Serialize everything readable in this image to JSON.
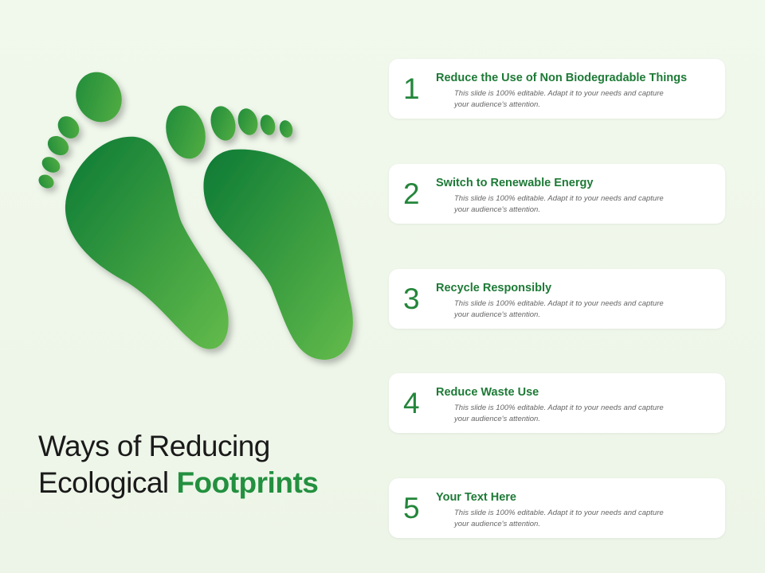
{
  "title": {
    "line1": "Ways of Reducing",
    "line2_plain": "Ecological ",
    "line2_accent": "Footprints"
  },
  "items": [
    {
      "number": "1",
      "heading": "Reduce the Use of Non Biodegradable Things",
      "desc_line1": "This slide is 100% editable.  Adapt it to your needs  and  capture",
      "desc_line2": "your audience's  attention."
    },
    {
      "number": "2",
      "heading": "Switch to Renewable Energy",
      "desc_line1": "This slide is 100% editable.  Adapt it to your needs  and  capture",
      "desc_line2": "your audience's  attention."
    },
    {
      "number": "3",
      "heading": "Recycle Responsibly",
      "desc_line1": "This slide is 100% editable.  Adapt it to your needs  and  capture",
      "desc_line2": "your audience's  attention."
    },
    {
      "number": "4",
      "heading": "Reduce Waste Use",
      "desc_line1": "This slide is 100% editable.  Adapt it to your needs  and  capture",
      "desc_line2": "your audience's  attention."
    },
    {
      "number": "5",
      "heading": "Your Text Here",
      "desc_line1": "This slide is 100% editable.  Adapt it to your needs  and  capture",
      "desc_line2": "your audience's  attention."
    }
  ],
  "colors": {
    "background": "#eef6e8",
    "accent_green": "#23903f",
    "foot_dark": "#0c7a35",
    "foot_light": "#5db746",
    "card": "#ffffff"
  },
  "icons": {
    "illustration": "footprints-icon"
  }
}
